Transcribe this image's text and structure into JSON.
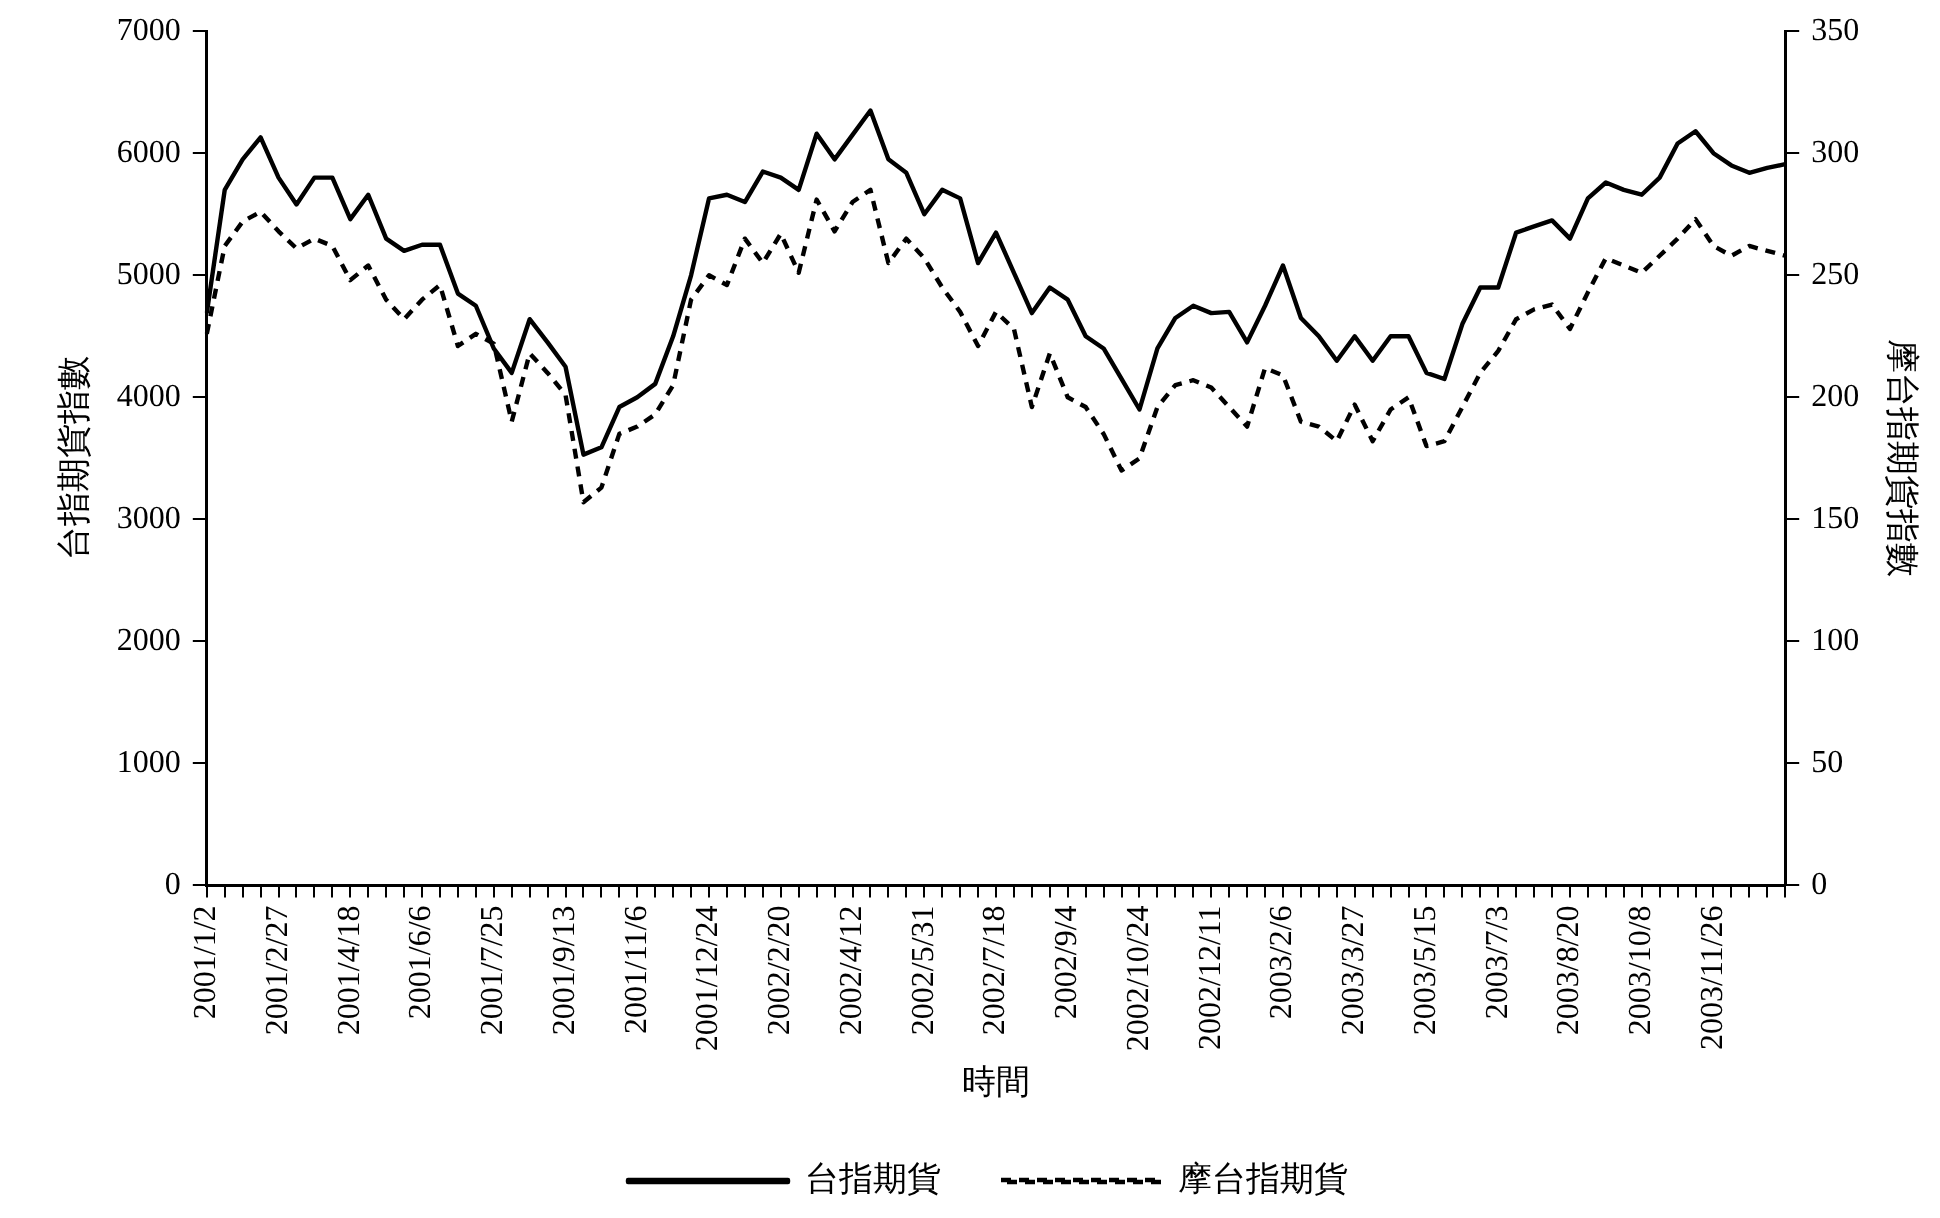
{
  "chart_data": {
    "type": "line",
    "xlabel": "時間",
    "ylabel": "台指期貨指數",
    "y2label": "摩台指期貨指數",
    "categories": [
      "2001/1/2",
      null,
      null,
      null,
      "2001/2/27",
      null,
      null,
      null,
      "2001/4/18",
      null,
      null,
      null,
      "2001/6/6",
      null,
      null,
      null,
      "2001/7/25",
      null,
      null,
      null,
      "2001/9/13",
      null,
      null,
      null,
      "2001/11/6",
      null,
      null,
      null,
      "2001/12/24",
      null,
      null,
      null,
      "2002/2/20",
      null,
      null,
      null,
      "2002/4/12",
      null,
      null,
      null,
      "2002/5/31",
      null,
      null,
      null,
      "2002/7/18",
      null,
      null,
      null,
      "2002/9/4",
      null,
      null,
      null,
      "2002/10/24",
      null,
      null,
      null,
      "2002/12/11",
      null,
      null,
      null,
      "2003/2/6",
      null,
      null,
      null,
      "2003/3/27",
      null,
      null,
      null,
      "2003/5/15",
      null,
      null,
      null,
      "2003/7/3",
      null,
      null,
      null,
      "2003/8/20",
      null,
      null,
      null,
      "2003/10/8",
      null,
      null,
      null,
      "2003/11/26",
      null,
      null,
      null,
      null
    ],
    "series": [
      {
        "name": "台指期貨",
        "color": "#000000",
        "line_style": "solid",
        "values": [
          4690,
          5700,
          5950,
          6130,
          5800,
          5580,
          5800,
          5800,
          5460,
          5660,
          5300,
          5200,
          5250,
          5250,
          4850,
          4750,
          4400,
          4200,
          4640,
          4450,
          4250,
          3530,
          3590,
          3920,
          4000,
          4110,
          4500,
          5000,
          5630,
          5660,
          5600,
          5850,
          5800,
          5700,
          6160,
          5950,
          6150,
          6350,
          5950,
          5840,
          5500,
          5700,
          5630,
          5100,
          5350,
          5020,
          4690,
          4900,
          4800,
          4500,
          4400,
          4150,
          3900,
          4400,
          4650,
          4750,
          4690,
          4700,
          4450,
          4750,
          5080,
          4650,
          4500,
          4300,
          4500,
          4300,
          4500,
          4500,
          4200,
          4150,
          4600,
          4900,
          4900,
          5350,
          5400,
          5450,
          5300,
          5630,
          5760,
          5700,
          5660,
          5800,
          6080,
          6180,
          6000,
          5900,
          5840,
          5880,
          5910
        ]
      },
      {
        "name": "摩台指期貨",
        "color": "#000000",
        "line_style": "dashed",
        "axis": "y2",
        "values": [
          226,
          262,
          272,
          276,
          268,
          261,
          265,
          262,
          248,
          254,
          240,
          232,
          240,
          246,
          221,
          226,
          222,
          190,
          218,
          210,
          201,
          157,
          163,
          185,
          188,
          193,
          205,
          240,
          250,
          246,
          265,
          255,
          267,
          251,
          281,
          268,
          280,
          285,
          255,
          265,
          257,
          245,
          235,
          221,
          235,
          228,
          196,
          218,
          200,
          196,
          185,
          170,
          175,
          196,
          205,
          207,
          204,
          196,
          188,
          212,
          209,
          190,
          188,
          182,
          197,
          182,
          195,
          200,
          180,
          182,
          196,
          210,
          219,
          232,
          236,
          238,
          228,
          243,
          257,
          254,
          251,
          258,
          265,
          273,
          262,
          258,
          262,
          260,
          258
        ]
      }
    ],
    "ylim": [
      0,
      7000
    ],
    "yticks": [
      0,
      1000,
      2000,
      3000,
      4000,
      5000,
      6000,
      7000
    ],
    "y2lim": [
      0,
      350
    ],
    "y2ticks": [
      0,
      50,
      100,
      150,
      200,
      250,
      300,
      350
    ],
    "grid": false,
    "legend": "bottom",
    "marker": "none"
  }
}
